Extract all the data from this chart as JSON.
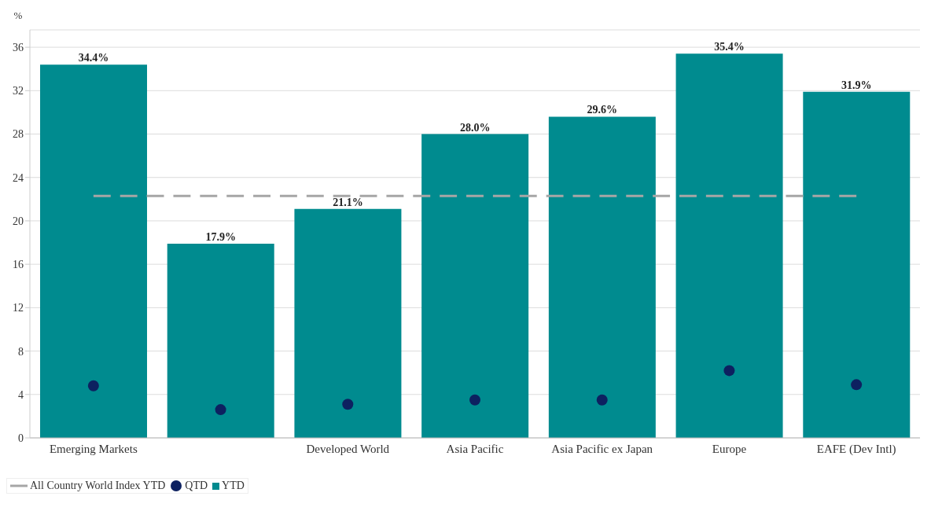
{
  "chart_data": {
    "type": "bar",
    "ylabel": "%",
    "categories": [
      "Emerging Markets",
      null,
      "Developed World",
      "Asia Pacific",
      "Asia Pacific ex Japan",
      "Europe",
      "EAFE (Dev Intl)"
    ],
    "series": [
      {
        "name": "All Country World Index YTD",
        "type": "line",
        "color": "#a6a6a6",
        "line_style": "dashed",
        "marker": "none",
        "values": [
          22.3,
          22.3,
          22.3,
          22.3,
          22.3,
          22.3,
          22.3
        ]
      },
      {
        "name": "QTD",
        "type": "scatter",
        "color": "#0d2160",
        "marker": "circle",
        "values": [
          4.8,
          2.6,
          3.1,
          3.5,
          3.5,
          6.2,
          4.9
        ]
      },
      {
        "name": "YTD",
        "color": "#008b8f",
        "values": [
          34.4,
          17.9,
          21.1,
          28.0,
          29.6,
          35.4,
          31.9
        ],
        "value_labels": [
          "34.4%",
          "17.9%",
          "21.1%",
          "28.0%",
          "29.6%",
          "35.4%",
          "31.9%"
        ]
      }
    ],
    "ylim": [
      0,
      37.6
    ],
    "yticks": [
      0,
      4,
      8,
      12,
      16,
      20,
      24,
      28,
      32,
      36
    ],
    "grid": "y",
    "legend": "bottom left"
  }
}
